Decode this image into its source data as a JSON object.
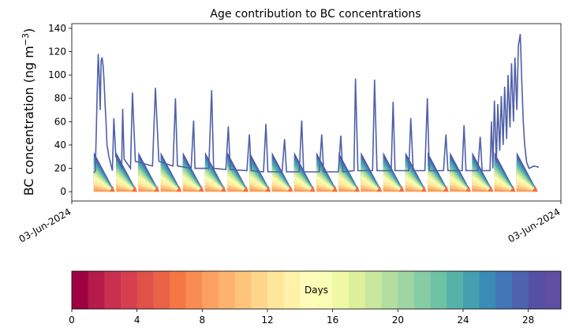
{
  "chart_data": [
    {
      "type": "area",
      "title": "Age contribution to BC concentrations",
      "ylabel": "BC concentration (ng m",
      "ylabel_sup": "−3",
      "ylabel_close": ")",
      "xlabel": "",
      "ylim": [
        -8,
        144
      ],
      "yticks": [
        0,
        20,
        40,
        60,
        80,
        100,
        120,
        140
      ],
      "xticks": [
        {
          "pos": 0.0,
          "label": "03-Jun-2024"
        },
        {
          "pos": 1.0,
          "label": "03-Jun-2024"
        }
      ],
      "stack_color_order": "stacked by age bin, oldest (blue) on top, youngest (red) at bottom",
      "top_envelope_points": [
        [
          0.045,
          16
        ],
        [
          0.048,
          18
        ],
        [
          0.05,
          50
        ],
        [
          0.052,
          85
        ],
        [
          0.054,
          118
        ],
        [
          0.056,
          100
        ],
        [
          0.058,
          70
        ],
        [
          0.06,
          112
        ],
        [
          0.062,
          115
        ],
        [
          0.064,
          108
        ],
        [
          0.066,
          95
        ],
        [
          0.068,
          75
        ],
        [
          0.07,
          60
        ],
        [
          0.072,
          40
        ],
        [
          0.074,
          35
        ],
        [
          0.076,
          30
        ],
        [
          0.083,
          18
        ],
        [
          0.086,
          63
        ],
        [
          0.09,
          30
        ],
        [
          0.102,
          21
        ],
        [
          0.104,
          71
        ],
        [
          0.107,
          28
        ],
        [
          0.12,
          20
        ],
        [
          0.124,
          85
        ],
        [
          0.13,
          26
        ],
        [
          0.165,
          22
        ],
        [
          0.171,
          89
        ],
        [
          0.178,
          26
        ],
        [
          0.207,
          22
        ],
        [
          0.212,
          80
        ],
        [
          0.216,
          22
        ],
        [
          0.244,
          20
        ],
        [
          0.249,
          61
        ],
        [
          0.252,
          20
        ],
        [
          0.28,
          20
        ],
        [
          0.286,
          87
        ],
        [
          0.29,
          20
        ],
        [
          0.315,
          19
        ],
        [
          0.32,
          56
        ],
        [
          0.324,
          19
        ],
        [
          0.358,
          18
        ],
        [
          0.363,
          49
        ],
        [
          0.367,
          18
        ],
        [
          0.392,
          17
        ],
        [
          0.397,
          58
        ],
        [
          0.401,
          17
        ],
        [
          0.43,
          17
        ],
        [
          0.435,
          45
        ],
        [
          0.439,
          17
        ],
        [
          0.465,
          17
        ],
        [
          0.47,
          61
        ],
        [
          0.474,
          17
        ],
        [
          0.506,
          17
        ],
        [
          0.511,
          49
        ],
        [
          0.515,
          17
        ],
        [
          0.545,
          17
        ],
        [
          0.55,
          48
        ],
        [
          0.554,
          17
        ],
        [
          0.577,
          18
        ],
        [
          0.58,
          97
        ],
        [
          0.585,
          18
        ],
        [
          0.615,
          18
        ],
        [
          0.619,
          96
        ],
        [
          0.624,
          18
        ],
        [
          0.653,
          18
        ],
        [
          0.657,
          77
        ],
        [
          0.661,
          18
        ],
        [
          0.689,
          18
        ],
        [
          0.693,
          63
        ],
        [
          0.698,
          18
        ],
        [
          0.722,
          18
        ],
        [
          0.727,
          80
        ],
        [
          0.731,
          18
        ],
        [
          0.76,
          18
        ],
        [
          0.765,
          49
        ],
        [
          0.769,
          18
        ],
        [
          0.798,
          18
        ],
        [
          0.802,
          57
        ],
        [
          0.806,
          18
        ],
        [
          0.83,
          18
        ],
        [
          0.835,
          47
        ],
        [
          0.839,
          18
        ],
        [
          0.855,
          18
        ],
        [
          0.858,
          60
        ],
        [
          0.861,
          20
        ],
        [
          0.864,
          78
        ],
        [
          0.868,
          25
        ],
        [
          0.871,
          75
        ],
        [
          0.875,
          35
        ],
        [
          0.878,
          82
        ],
        [
          0.882,
          40
        ],
        [
          0.885,
          90
        ],
        [
          0.889,
          45
        ],
        [
          0.892,
          100
        ],
        [
          0.896,
          55
        ],
        [
          0.899,
          110
        ],
        [
          0.903,
          60
        ],
        [
          0.906,
          115
        ],
        [
          0.91,
          70
        ],
        [
          0.913,
          125
        ],
        [
          0.917,
          135
        ],
        [
          0.92,
          95
        ],
        [
          0.923,
          60
        ],
        [
          0.926,
          40
        ],
        [
          0.93,
          25
        ],
        [
          0.935,
          20
        ],
        [
          0.945,
          22
        ],
        [
          0.955,
          21
        ]
      ],
      "sawtooth_cycles": {
        "count": 20,
        "peak_value": 34,
        "baseline_value": 0
      },
      "colorbar": {
        "label": "Days",
        "min": 0,
        "max": 30,
        "ticks": [
          0,
          4,
          8,
          12,
          16,
          20,
          24,
          28
        ],
        "bins": 30,
        "colormap": [
          "#9e0142",
          "#b41b48",
          "#c9304f",
          "#d63f4f",
          "#e0514a",
          "#ea6246",
          "#f47744",
          "#f98c52",
          "#fca062",
          "#fdb36e",
          "#fec47c",
          "#fed68b",
          "#fee69a",
          "#fff2a8",
          "#fffbb8",
          "#f9fcb4",
          "#eef8a5",
          "#deef9b",
          "#c9e79d",
          "#b3de9f",
          "#9ed6a3",
          "#86cca4",
          "#6dc3a4",
          "#56b1a9",
          "#449fb0",
          "#3a8bb6",
          "#4376b6",
          "#4e63ad",
          "#5550a4",
          "#5e4fa2"
        ]
      }
    }
  ]
}
